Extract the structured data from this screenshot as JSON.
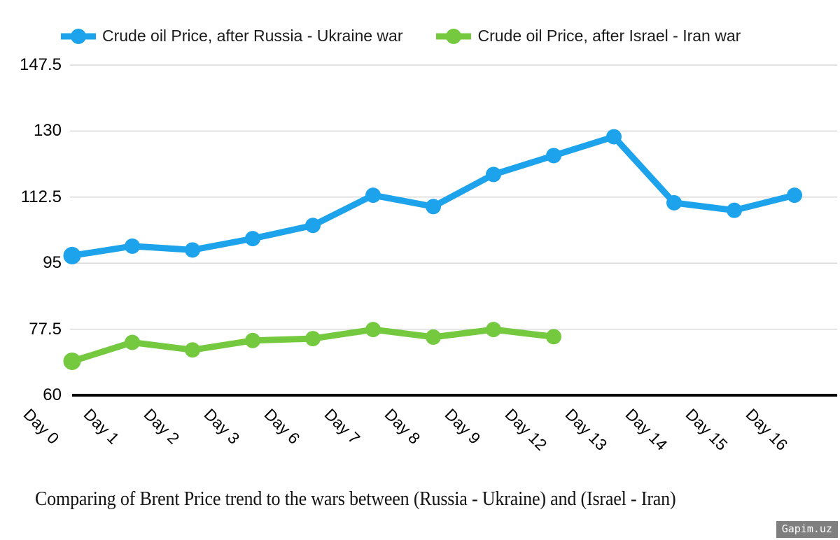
{
  "legend": [
    {
      "label": "Crude oil Price, after Russia - Ukraine war",
      "color": "#1ca3eb"
    },
    {
      "label": "Crude oil Price, after Israel - Iran war",
      "color": "#74c93f"
    }
  ],
  "caption": "Comparing of Brent Price trend to the wars between (Russia - Ukraine) and (Israel - Iran)",
  "watermark": "Gapim.uz",
  "colors": {
    "grid": "#d9d9d9",
    "axis": "#000000",
    "blue_series": "#1ca3eb",
    "green_series": "#74c93f"
  },
  "chart_data": {
    "type": "line",
    "title": "",
    "xlabel": "",
    "ylabel": "",
    "categories": [
      "Day 0",
      "Day 1",
      "Day 2",
      "Day 3",
      "Day 6",
      "Day 7",
      "Day 8",
      "Day 9",
      "Day 12",
      "Day 13",
      "Day 14",
      "Day 15",
      "Day 16"
    ],
    "series": [
      {
        "name": "Crude oil Price, after Russia - Ukraine war",
        "color": "#1ca3eb",
        "values": [
          97,
          99.5,
          98.5,
          101.5,
          105,
          113,
          110,
          118.5,
          123.5,
          128.5,
          111,
          109,
          113
        ]
      },
      {
        "name": "Crude oil Price, after Israel - Iran war",
        "color": "#74c93f",
        "values": [
          69,
          74,
          72,
          74.5,
          75,
          77.4,
          75.4,
          77.4,
          75.5,
          null,
          null,
          null,
          null
        ]
      }
    ],
    "ylim": [
      60,
      147.5
    ],
    "yticks": [
      60,
      77.5,
      95,
      112.5,
      130,
      147.5
    ],
    "grid": true,
    "legend_position": "top"
  }
}
